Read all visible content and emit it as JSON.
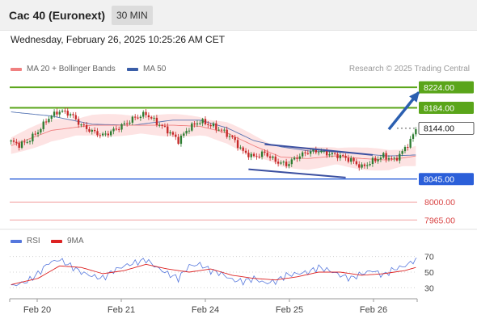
{
  "header": {
    "instrument": "Cac 40 (Euronext)",
    "timeframe": "30 MIN"
  },
  "timestamp": "Wednesday, February 26, 2025 10:25:26 AM CET",
  "legend": {
    "ma20": {
      "label": "MA 20 + Bollinger Bands",
      "color": "#f08080"
    },
    "ma50": {
      "label": "MA 50",
      "color": "#3a5ea8"
    }
  },
  "credit": "Research © 2025 Trading Central",
  "rsi_legend": {
    "rsi": {
      "label": "RSI",
      "color": "#5577dd"
    },
    "ma9": {
      "label": "9MA",
      "color": "#dd2222"
    }
  },
  "colors": {
    "up_candle": "#2e7d32",
    "down_candle": "#c62828",
    "resistance": "#5aa51a",
    "support": "#2b5fd9",
    "lower_target": "#f2a0a0",
    "bollinger_fill": "#fde3e3",
    "channel": "#3a4fa0",
    "arrow": "#2b5fb0"
  },
  "chart_data": [
    {
      "type": "candlestick",
      "title": "Cac 40 (Euronext)",
      "ylim": [
        7950,
        8240
      ],
      "x_ticks": [
        "Feb 20",
        "Feb 21",
        "Feb 24",
        "Feb 25",
        "Feb 26"
      ],
      "levels": [
        {
          "value": 8224.0,
          "label": "8224.00",
          "kind": "resistance"
        },
        {
          "value": 8184.0,
          "label": "8184.00",
          "kind": "resistance"
        },
        {
          "value": 8144.0,
          "label": "8144.00",
          "kind": "current"
        },
        {
          "value": 8045.0,
          "label": "8045.00",
          "kind": "support"
        },
        {
          "value": 8000.0,
          "label": "8000.00",
          "kind": "lower_target"
        },
        {
          "value": 7965.0,
          "label": "7965.00",
          "kind": "lower_target"
        }
      ],
      "close_anchors": [
        [
          0,
          8118
        ],
        [
          3,
          8112
        ],
        [
          6,
          8118
        ],
        [
          10,
          8138
        ],
        [
          14,
          8165
        ],
        [
          18,
          8178
        ],
        [
          22,
          8172
        ],
        [
          26,
          8150
        ],
        [
          30,
          8138
        ],
        [
          34,
          8130
        ],
        [
          38,
          8140
        ],
        [
          42,
          8152
        ],
        [
          46,
          8165
        ],
        [
          50,
          8172
        ],
        [
          54,
          8155
        ],
        [
          58,
          8140
        ],
        [
          62,
          8120
        ],
        [
          66,
          8145
        ],
        [
          70,
          8158
        ],
        [
          74,
          8150
        ],
        [
          78,
          8140
        ],
        [
          82,
          8125
        ],
        [
          86,
          8098
        ],
        [
          90,
          8088
        ],
        [
          94,
          8096
        ],
        [
          98,
          8080
        ],
        [
          102,
          8073
        ],
        [
          106,
          8088
        ],
        [
          110,
          8098
        ],
        [
          114,
          8100
        ],
        [
          118,
          8094
        ],
        [
          122,
          8090
        ],
        [
          126,
          8082
        ],
        [
          130,
          8068
        ],
        [
          134,
          8080
        ],
        [
          138,
          8090
        ],
        [
          142,
          8082
        ],
        [
          145,
          8098
        ],
        [
          148,
          8120
        ],
        [
          150,
          8142
        ]
      ],
      "ma20_anchors": [
        [
          0,
          8110
        ],
        [
          15,
          8140
        ],
        [
          30,
          8150
        ],
        [
          45,
          8150
        ],
        [
          60,
          8150
        ],
        [
          70,
          8148
        ],
        [
          80,
          8135
        ],
        [
          90,
          8110
        ],
        [
          100,
          8088
        ],
        [
          110,
          8085
        ],
        [
          120,
          8090
        ],
        [
          130,
          8085
        ],
        [
          140,
          8082
        ],
        [
          150,
          8090
        ]
      ],
      "ma50_anchors": [
        [
          0,
          8176
        ],
        [
          15,
          8168
        ],
        [
          30,
          8152
        ],
        [
          45,
          8150
        ],
        [
          60,
          8160
        ],
        [
          70,
          8160
        ],
        [
          80,
          8145
        ],
        [
          90,
          8120
        ],
        [
          100,
          8108
        ],
        [
          110,
          8100
        ],
        [
          120,
          8098
        ],
        [
          130,
          8094
        ],
        [
          140,
          8090
        ],
        [
          150,
          8092
        ]
      ],
      "channel": [
        {
          "from": [
            94,
            8113
          ],
          "to": [
            134,
            8092
          ]
        },
        {
          "from": [
            88,
            8064
          ],
          "to": [
            124,
            8048
          ]
        }
      ],
      "arrow": {
        "from": [
          140,
          8142
        ],
        "to": [
          151,
          8214
        ]
      }
    },
    {
      "type": "line",
      "title": "RSI",
      "ylim": [
        20,
        80
      ],
      "y_ticks": [
        70,
        50,
        30
      ],
      "series": [
        {
          "name": "RSI",
          "anchors": [
            [
              0,
              32
            ],
            [
              6,
              38
            ],
            [
              10,
              48
            ],
            [
              14,
              62
            ],
            [
              18,
              66
            ],
            [
              22,
              58
            ],
            [
              26,
              50
            ],
            [
              30,
              45
            ],
            [
              34,
              42
            ],
            [
              38,
              52
            ],
            [
              42,
              58
            ],
            [
              46,
              62
            ],
            [
              50,
              66
            ],
            [
              54,
              56
            ],
            [
              58,
              48
            ],
            [
              62,
              42
            ],
            [
              66,
              58
            ],
            [
              70,
              60
            ],
            [
              74,
              52
            ],
            [
              78,
              48
            ],
            [
              82,
              40
            ],
            [
              86,
              38
            ],
            [
              90,
              42
            ],
            [
              94,
              36
            ],
            [
              98,
              38
            ],
            [
              102,
              46
            ],
            [
              106,
              48
            ],
            [
              110,
              50
            ],
            [
              114,
              56
            ],
            [
              118,
              52
            ],
            [
              122,
              46
            ],
            [
              126,
              42
            ],
            [
              130,
              48
            ],
            [
              134,
              52
            ],
            [
              138,
              46
            ],
            [
              142,
              54
            ],
            [
              146,
              58
            ],
            [
              150,
              66
            ]
          ]
        },
        {
          "name": "9MA",
          "anchors": [
            [
              0,
              34
            ],
            [
              10,
              42
            ],
            [
              18,
              58
            ],
            [
              26,
              56
            ],
            [
              34,
              48
            ],
            [
              42,
              52
            ],
            [
              50,
              60
            ],
            [
              58,
              54
            ],
            [
              66,
              50
            ],
            [
              74,
              54
            ],
            [
              82,
              46
            ],
            [
              90,
              42
            ],
            [
              98,
              40
            ],
            [
              106,
              44
            ],
            [
              114,
              50
            ],
            [
              122,
              50
            ],
            [
              130,
              46
            ],
            [
              138,
              48
            ],
            [
              146,
              52
            ],
            [
              150,
              56
            ]
          ]
        }
      ]
    }
  ]
}
